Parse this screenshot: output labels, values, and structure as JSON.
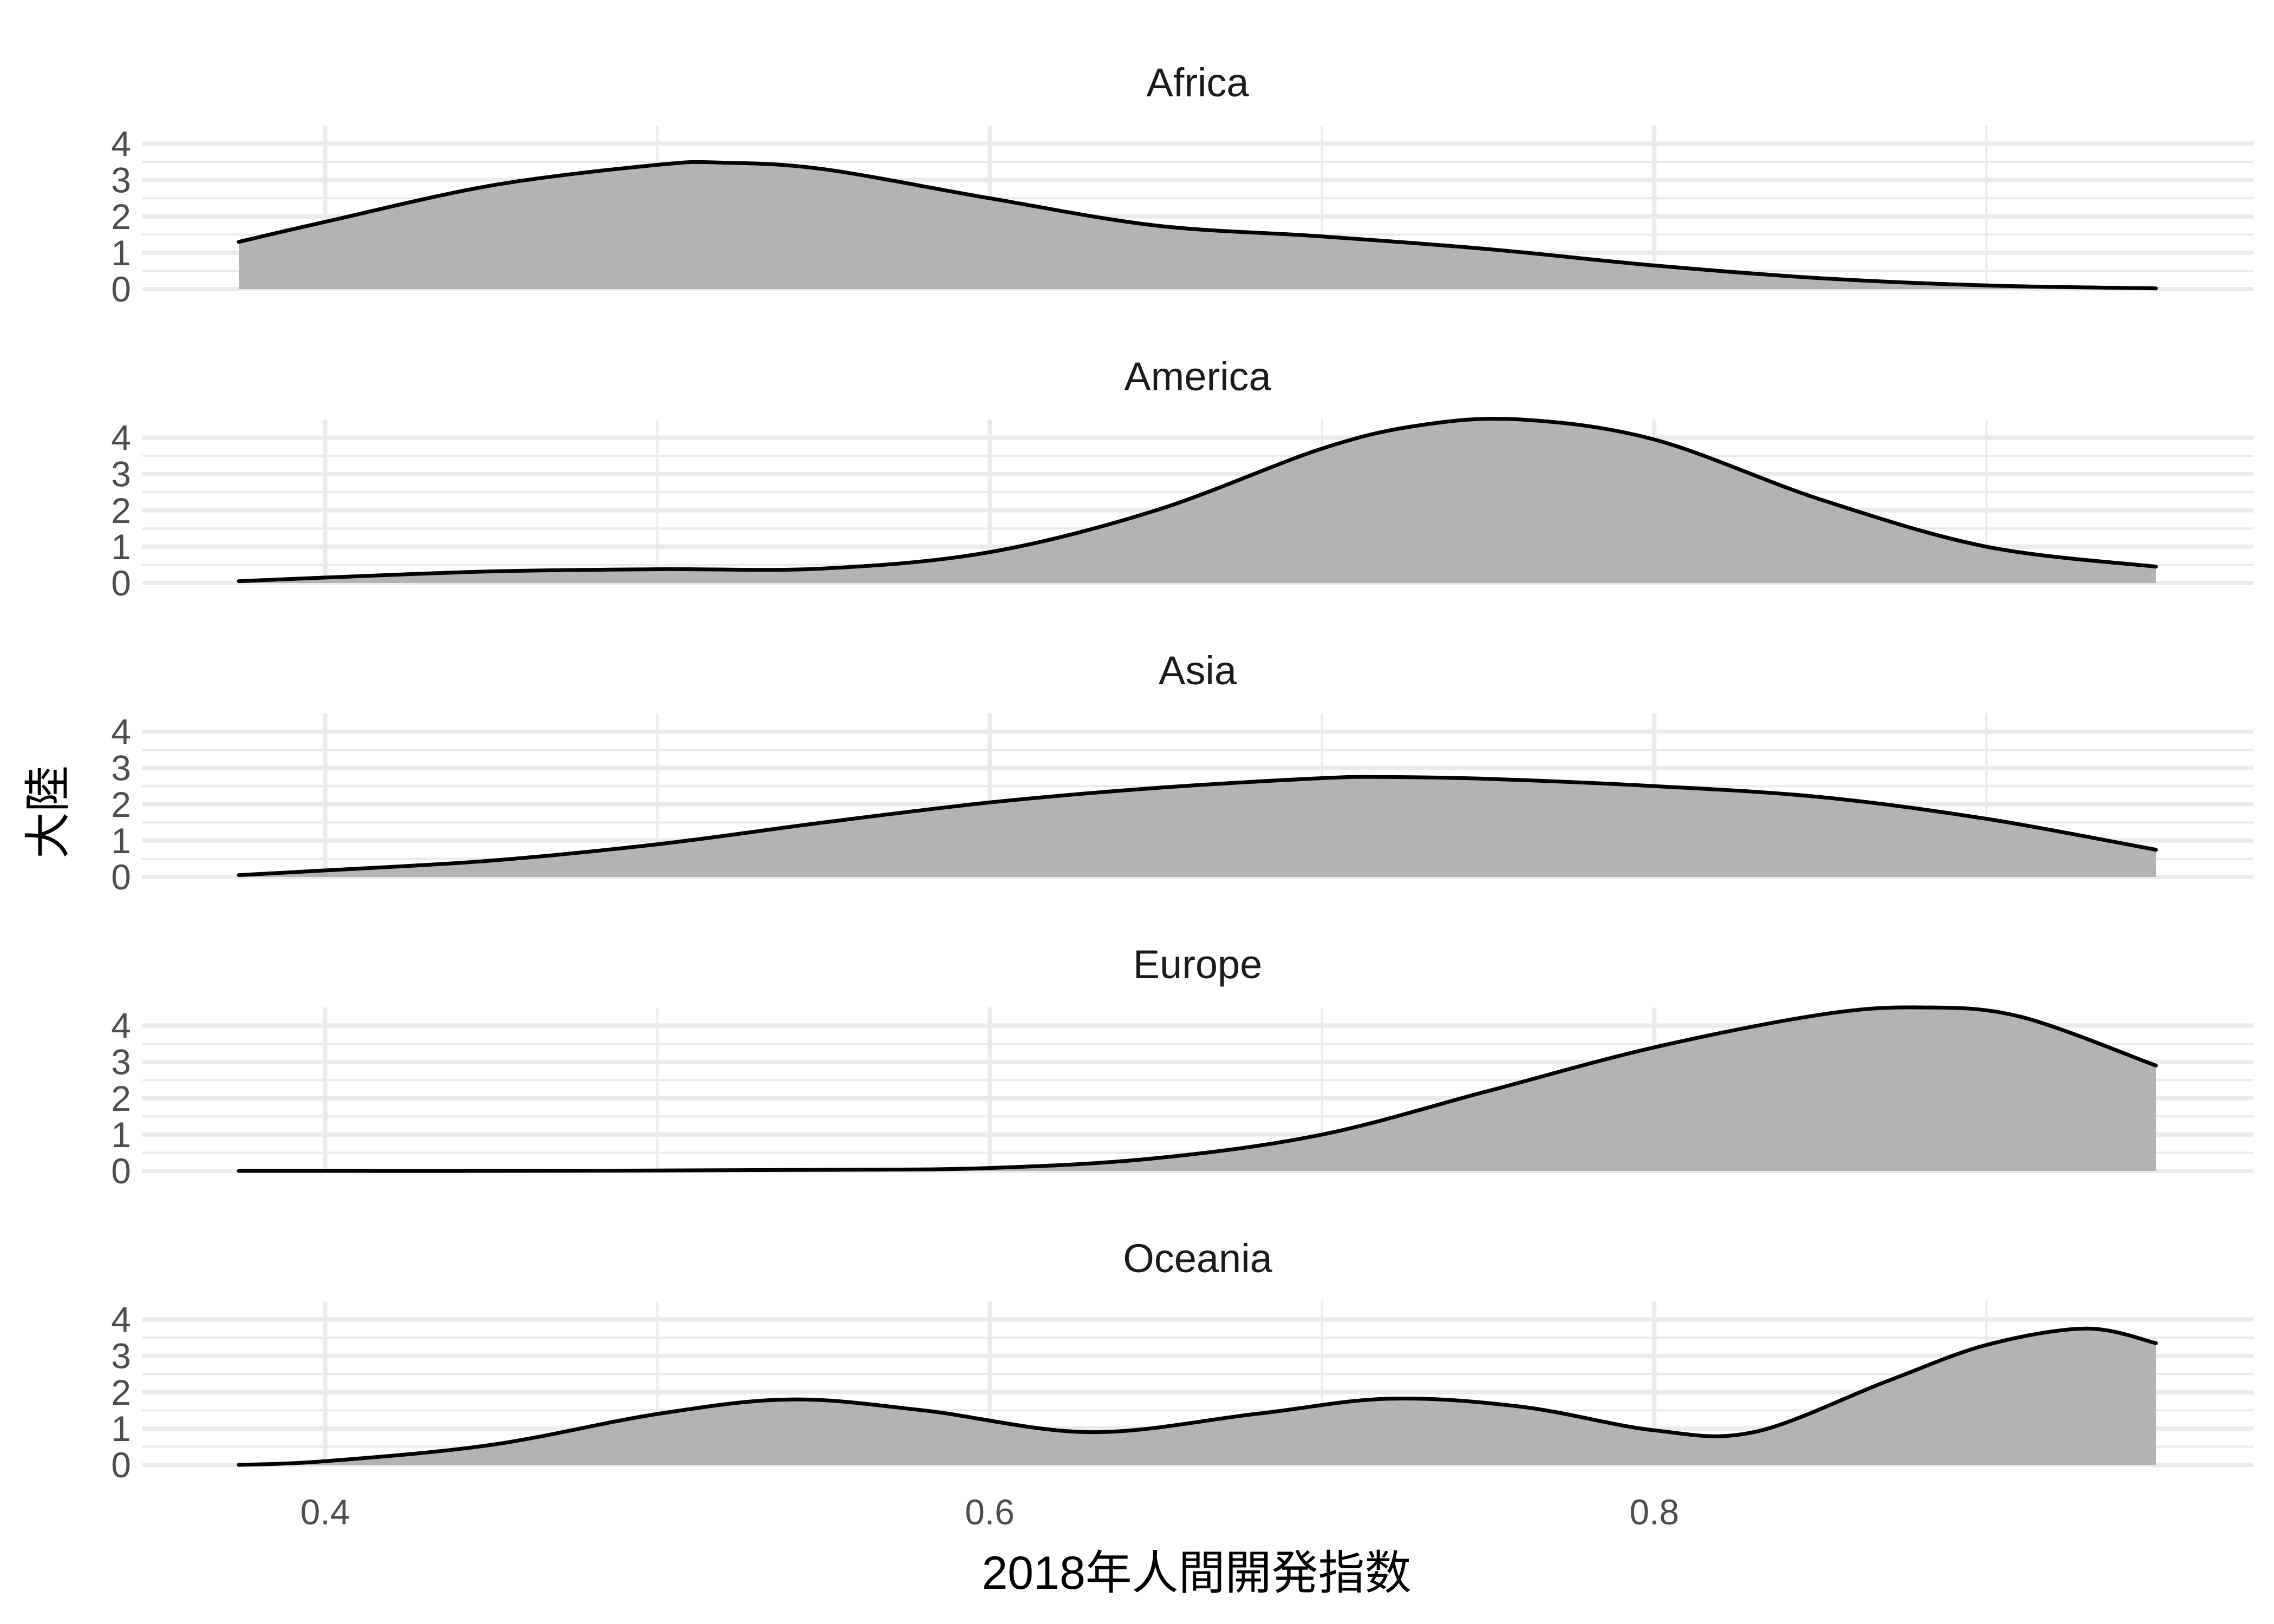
{
  "chart_data": {
    "type": "area",
    "xlabel": "2018年人間開発指数",
    "ylabel": "大陸",
    "xlim": [
      0.374,
      0.951
    ],
    "ylim": [
      0,
      4.5
    ],
    "xticks": [
      0.4,
      0.6,
      0.8
    ],
    "xtick_labels": [
      "0.4",
      "0.6",
      "0.8"
    ],
    "yticks": [
      0,
      1,
      2,
      3,
      4
    ],
    "ytick_labels": [
      "0",
      "1",
      "2",
      "3",
      "4"
    ],
    "grid": true,
    "legend": "none",
    "fill_color": "#b3b3b3",
    "line_color": "#000000",
    "series": [
      {
        "name": "Africa",
        "x": [
          0.374,
          0.4,
          0.45,
          0.5,
          0.52,
          0.55,
          0.6,
          0.65,
          0.7,
          0.75,
          0.8,
          0.85,
          0.9,
          0.951
        ],
        "values": [
          1.3,
          1.85,
          2.85,
          3.42,
          3.48,
          3.3,
          2.5,
          1.75,
          1.45,
          1.1,
          0.65,
          0.3,
          0.1,
          0.02
        ]
      },
      {
        "name": "America",
        "x": [
          0.374,
          0.4,
          0.45,
          0.5,
          0.55,
          0.6,
          0.65,
          0.7,
          0.73,
          0.76,
          0.8,
          0.85,
          0.9,
          0.951
        ],
        "values": [
          0.05,
          0.15,
          0.32,
          0.38,
          0.4,
          0.85,
          2.0,
          3.7,
          4.35,
          4.5,
          3.95,
          2.3,
          1.0,
          0.45
        ]
      },
      {
        "name": "Asia",
        "x": [
          0.374,
          0.4,
          0.45,
          0.5,
          0.55,
          0.6,
          0.65,
          0.7,
          0.72,
          0.75,
          0.8,
          0.85,
          0.9,
          0.951
        ],
        "values": [
          0.05,
          0.18,
          0.45,
          0.9,
          1.5,
          2.05,
          2.45,
          2.72,
          2.75,
          2.7,
          2.5,
          2.2,
          1.6,
          0.75
        ]
      },
      {
        "name": "Europe",
        "x": [
          0.374,
          0.45,
          0.55,
          0.6,
          0.65,
          0.7,
          0.75,
          0.8,
          0.85,
          0.88,
          0.91,
          0.951
        ],
        "values": [
          0.0,
          0.0,
          0.03,
          0.08,
          0.35,
          1.0,
          2.2,
          3.4,
          4.3,
          4.5,
          4.25,
          2.9
        ]
      },
      {
        "name": "Oceania",
        "x": [
          0.374,
          0.4,
          0.45,
          0.5,
          0.54,
          0.58,
          0.63,
          0.68,
          0.72,
          0.76,
          0.8,
          0.83,
          0.87,
          0.9,
          0.93,
          0.951
        ],
        "values": [
          0.0,
          0.1,
          0.55,
          1.4,
          1.8,
          1.5,
          0.9,
          1.4,
          1.82,
          1.6,
          0.95,
          0.9,
          2.3,
          3.3,
          3.75,
          3.35
        ]
      }
    ]
  }
}
